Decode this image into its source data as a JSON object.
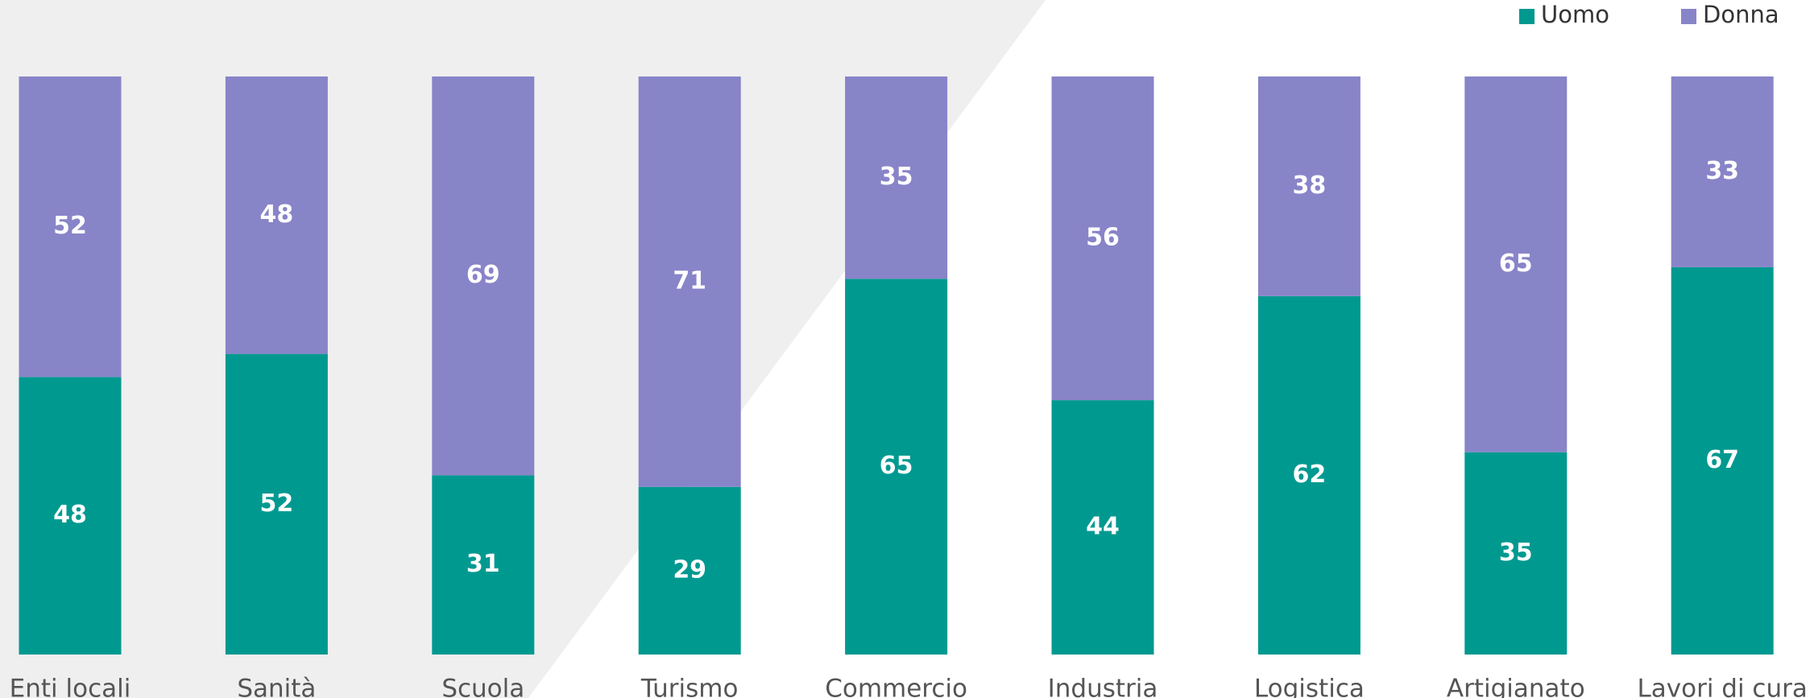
{
  "chart_data": {
    "type": "stacked_bar",
    "categories": [
      "Enti locali",
      "Sanità",
      "Scuola",
      "Turismo",
      "Commercio",
      "Industria",
      "Logistica",
      "Artigianato",
      "Lavori di cura"
    ],
    "series": [
      {
        "name": "Uomo",
        "color": "#009990",
        "values": [
          48,
          52,
          31,
          29,
          65,
          44,
          62,
          35,
          67
        ]
      },
      {
        "name": "Donna",
        "color": "#8884c8",
        "values": [
          52,
          48,
          69,
          71,
          35,
          56,
          38,
          65,
          33
        ]
      }
    ],
    "legend": "top-right"
  }
}
